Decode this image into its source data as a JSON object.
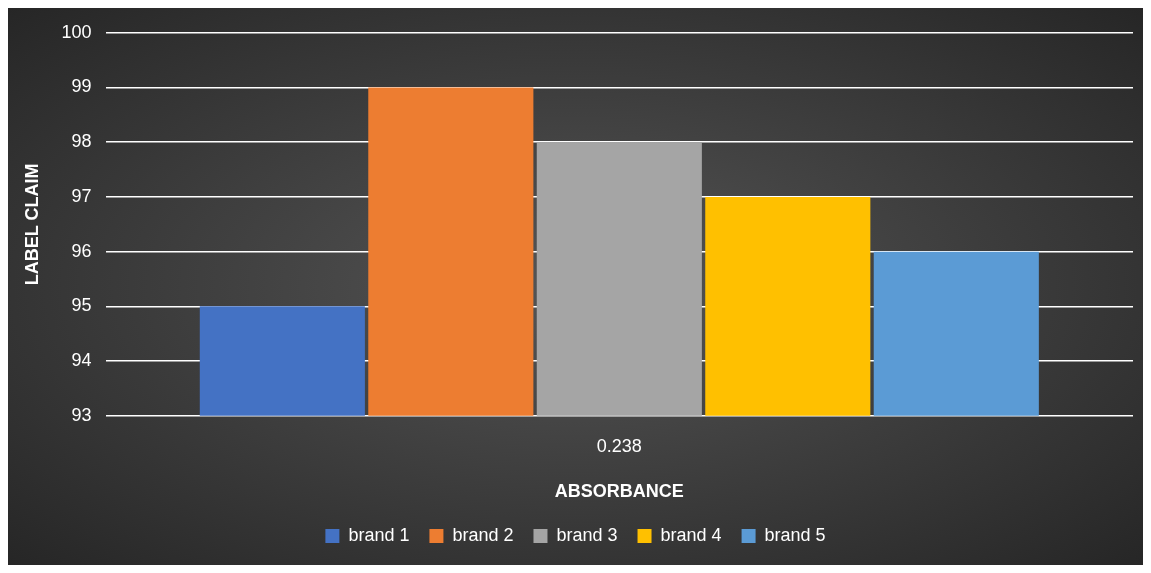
{
  "chart_data": {
    "type": "bar",
    "xlabel": "ABSORBANCE",
    "ylabel": "LABEL CLAIM",
    "categories": [
      "0.238"
    ],
    "series": [
      {
        "name": "brand 1",
        "color": "#4472c4",
        "values": [
          95
        ]
      },
      {
        "name": "brand 2",
        "color": "#ed7d31",
        "values": [
          99
        ]
      },
      {
        "name": "brand 3",
        "color": "#a5a5a5",
        "values": [
          98
        ]
      },
      {
        "name": "brand 4",
        "color": "#ffc000",
        "values": [
          97
        ]
      },
      {
        "name": "brand 5",
        "color": "#5b9bd5",
        "values": [
          96
        ]
      }
    ],
    "ylim": [
      93,
      100
    ],
    "yticks": [
      93,
      94,
      95,
      96,
      97,
      98,
      99,
      100
    ],
    "grid": "y",
    "legend": "bottom"
  }
}
